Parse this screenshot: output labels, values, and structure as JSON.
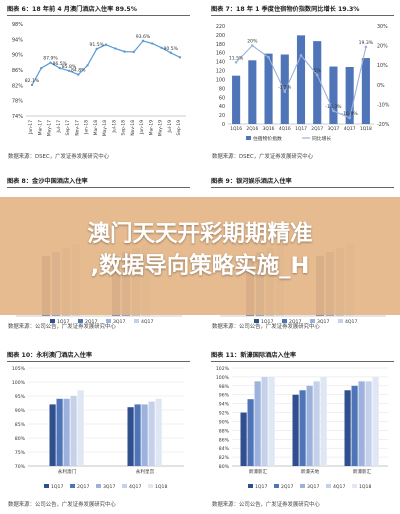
{
  "overlay": {
    "line1": "澳门天天开彩期期精准",
    "line2": ",数据导向策略实施_H"
  },
  "colors": {
    "navy": "#2f4f8f",
    "mid": "#4f75b8",
    "light": "#9cb2dc",
    "pale": "#c5d1ea",
    "line": "#5b9bd5",
    "overlay": "#e2b280"
  },
  "panels": [
    {
      "title": "图表 6：18 年前 4 月澳门酒店入住率 89.5%",
      "source": "数据来源：DSEC，广发证券发展研究中心"
    },
    {
      "title": "图表 7：18 年 1 季度住宿物价指数同比增长 19.3%",
      "source": "数据来源：DSEC，广发证券发展研究中心"
    },
    {
      "title": "图表 8：金沙中国酒店入住率",
      "source": "数据来源：公司公告，广发证券发展研究中心"
    },
    {
      "title": "图表 9：银河娱乐酒店入住率",
      "source": "数据来源：公司公告，广发证券发展研究中心"
    },
    {
      "title": "图表 10：永利澳门酒店入住率",
      "source": "数据来源：公司公告，广发证券发展研究中心"
    },
    {
      "title": "图表 11：新濠国际酒店入住率",
      "source": "数据来源：公司公告，广发证券发展研究中心"
    }
  ],
  "chart_data": [
    {
      "type": "line",
      "x": [
        "Jan-17",
        "Mar-17",
        "May-17",
        "Jul-17",
        "Sep-17",
        "Nov-17",
        "Jan-18",
        "Mar-18",
        "May-18",
        "Jul-18",
        "Sep-18",
        "Nov-18",
        "Jan-19",
        "Mar-19",
        "May-19",
        "Jul-19",
        "Sep-19"
      ],
      "values": [
        82.1,
        86.5,
        87.9,
        86.5,
        85.8,
        84.8,
        87.2,
        91.5,
        92.6,
        91.6,
        90.8,
        90.7,
        93.6,
        92.9,
        91.8,
        90.5,
        89.3
      ],
      "data_labels": [
        "82.1%",
        "",
        "87.9%",
        "86.5%",
        "85.8%",
        "84.8%",
        "",
        "91.5%",
        "",
        "",
        "",
        "",
        "93.6%",
        "",
        "",
        "90.5%",
        ""
      ],
      "yticks": [
        "74%",
        "78%",
        "82%",
        "86%",
        "90%",
        "94%",
        "98%"
      ],
      "ylim": [
        74,
        98
      ]
    },
    {
      "type": "bar",
      "categories": [
        "1Q16",
        "2Q16",
        "3Q16",
        "4Q16",
        "1Q17",
        "2Q17",
        "3Q17",
        "4Q17",
        "1Q18"
      ],
      "series": [
        {
          "name": "住宿物价指数",
          "values": [
            108.5,
            143,
            158,
            156,
            199,
            186,
            129,
            128,
            148
          ]
        },
        {
          "name": "同比增长",
          "values": [
            11.5,
            20,
            14,
            -3.5,
            15,
            5,
            -13.3,
            -16.9,
            19.3
          ]
        }
      ],
      "line_labels": [
        "11.5%",
        "20%",
        "",
        "-3.5%",
        "",
        "5%",
        "-13.3%",
        "-16.9%",
        "19.3%"
      ],
      "yticks_left": [
        "0",
        "20",
        "40",
        "60",
        "80",
        "100",
        "120",
        "140",
        "160",
        "180",
        "200",
        "220"
      ],
      "ylim_left": [
        0,
        220
      ],
      "yticks_right": [
        "-20%",
        "-10%",
        "0%",
        "10%",
        "20%",
        "30%"
      ],
      "ylim_right": [
        -20,
        30
      ],
      "legend": [
        "住宿物价指数",
        "同比增长"
      ]
    },
    {
      "type": "bar",
      "legend": [
        "1Q17",
        "2Q17",
        "3Q17",
        "4Q17"
      ]
    },
    {
      "type": "bar",
      "legend": [
        "1Q17",
        "2Q17",
        "3Q17",
        "4Q17"
      ]
    },
    {
      "type": "bar",
      "categories": [
        "永利澳门",
        "永利皇宫"
      ],
      "series": [
        {
          "name": "1Q17",
          "values": [
            92,
            91
          ]
        },
        {
          "name": "2Q17",
          "values": [
            94,
            92
          ]
        },
        {
          "name": "3Q17",
          "values": [
            94,
            92
          ]
        },
        {
          "name": "4Q17",
          "values": [
            95,
            93
          ]
        },
        {
          "name": "1Q18",
          "values": [
            97,
            94
          ]
        }
      ],
      "yticks": [
        "70%",
        "75%",
        "80%",
        "85%",
        "90%",
        "95%",
        "100%",
        "105%"
      ],
      "ylim": [
        70,
        105
      ],
      "legend": [
        "1Q17",
        "2Q17",
        "3Q17",
        "4Q17",
        "1Q18"
      ]
    },
    {
      "type": "bar",
      "categories": [
        "新濠影汇",
        "新濠天地",
        "新濠影汇"
      ],
      "series": [
        {
          "name": "1Q17",
          "values": [
            92,
            96,
            97
          ]
        },
        {
          "name": "2Q17",
          "values": [
            95,
            97,
            98
          ]
        },
        {
          "name": "3Q17",
          "values": [
            99,
            98,
            99
          ]
        },
        {
          "name": "4Q17",
          "values": [
            100,
            99,
            99
          ]
        },
        {
          "name": "1Q18",
          "values": [
            100,
            100,
            100
          ]
        }
      ],
      "yticks": [
        "80%",
        "82%",
        "84%",
        "86%",
        "88%",
        "90%",
        "92%",
        "94%",
        "96%",
        "98%",
        "100%",
        "102%"
      ],
      "ylim": [
        80,
        102
      ],
      "legend": [
        "1Q17",
        "2Q17",
        "3Q17",
        "4Q17",
        "1Q18"
      ]
    }
  ]
}
